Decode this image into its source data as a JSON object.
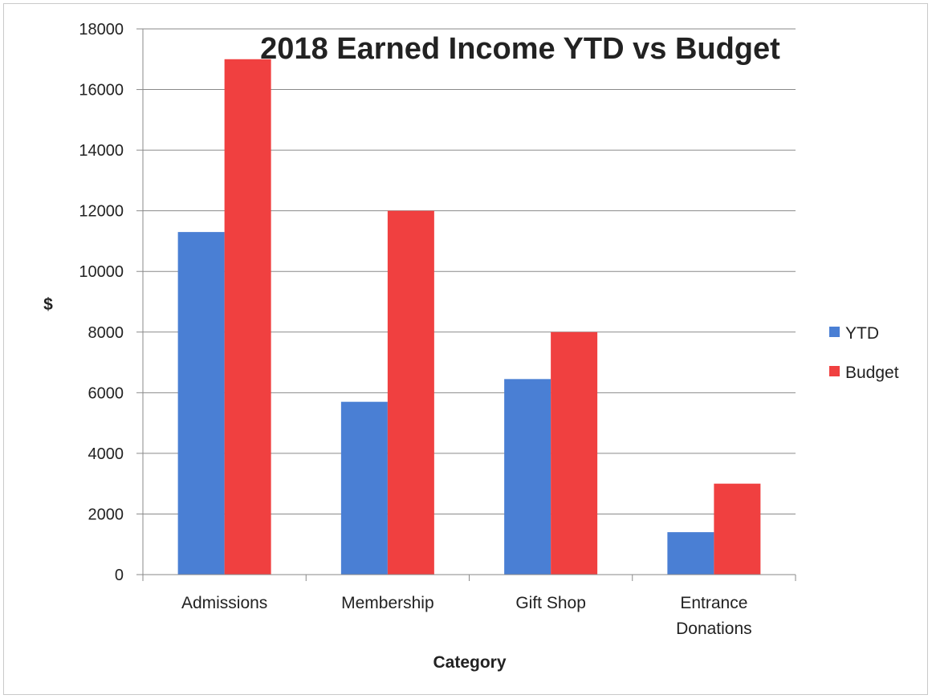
{
  "chart_data": {
    "type": "bar",
    "title": "2018 Earned Income YTD vs Budget",
    "xlabel": "Category",
    "ylabel": "$",
    "ylim": [
      0,
      18000
    ],
    "yticks": [
      0,
      2000,
      4000,
      6000,
      8000,
      10000,
      12000,
      14000,
      16000,
      18000
    ],
    "categories": [
      [
        "Admissions"
      ],
      [
        "Membership"
      ],
      [
        "Gift Shop"
      ],
      [
        "Entrance",
        "Donations"
      ]
    ],
    "series": [
      {
        "name": "YTD",
        "color": "#4a7fd4",
        "values": [
          11300,
          5700,
          6450,
          1400
        ]
      },
      {
        "name": "Budget",
        "color": "#f04040",
        "values": [
          17000,
          12000,
          8000,
          3000
        ]
      }
    ],
    "grid": true,
    "legend_position": "right"
  }
}
